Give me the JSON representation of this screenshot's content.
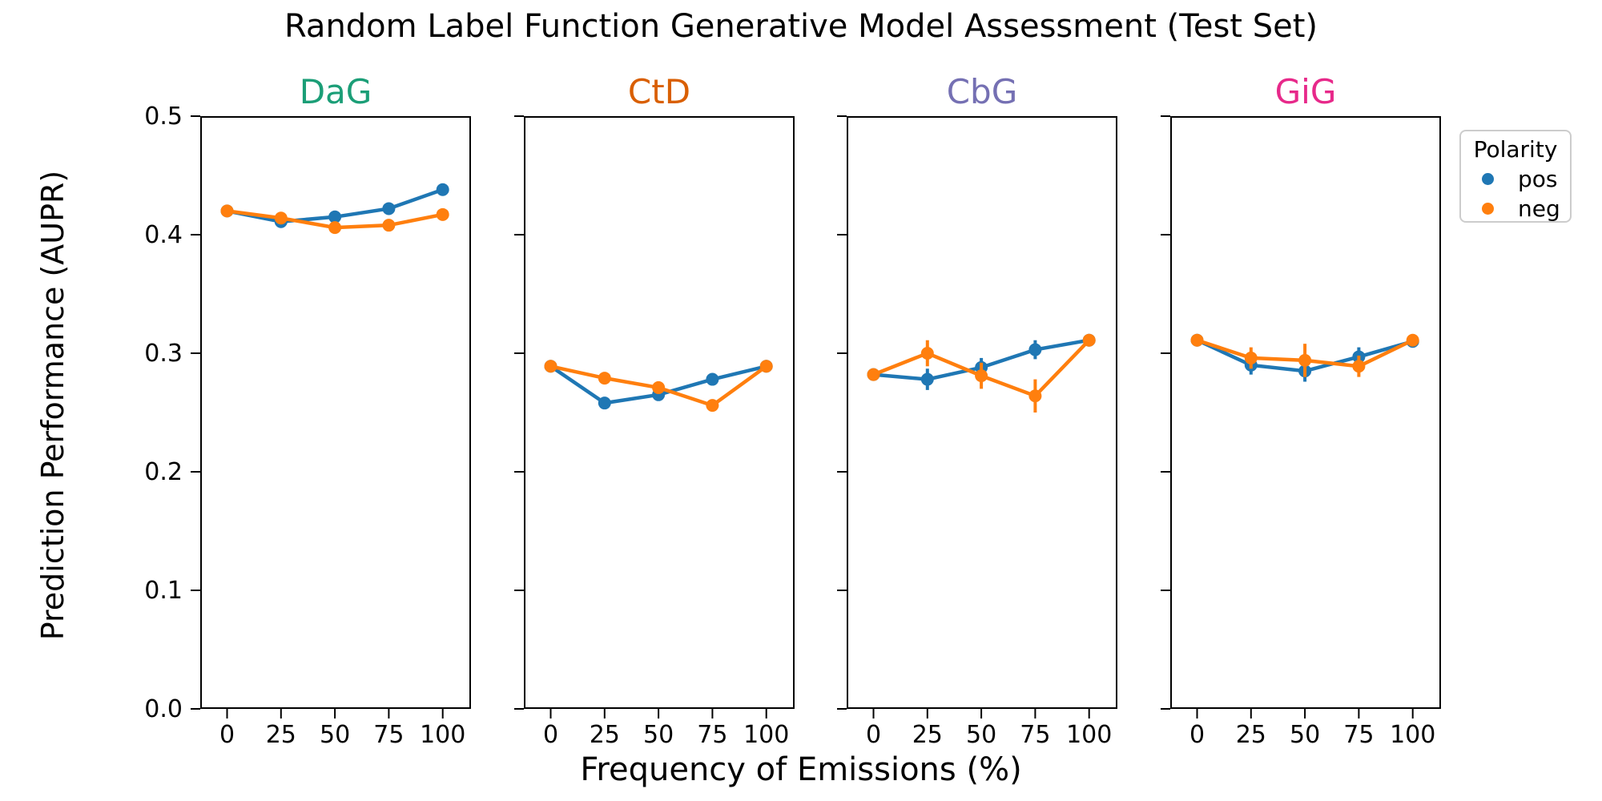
{
  "chart_data": {
    "type": "line",
    "title": "Random Label Function Generative Model Assessment (Test Set)",
    "xlabel": "Frequency of Emissions (%)",
    "ylabel": "Prediction Performance (AUPR)",
    "x": [
      0,
      25,
      50,
      75,
      100
    ],
    "xticklabels": [
      "0",
      "25",
      "50",
      "75",
      "100"
    ],
    "ylim": [
      0.0,
      0.5
    ],
    "yticks": [
      0.5,
      0.4,
      0.3,
      0.2,
      0.1,
      0.0
    ],
    "yticklabels": [
      "0.5",
      "0.4",
      "0.3",
      "0.2",
      "0.1",
      "0.0"
    ],
    "grid": false,
    "legend": {
      "title": "Polarity",
      "position": "outside-upper-right",
      "entries": [
        {
          "label": "pos",
          "color": "#1f77b4"
        },
        {
          "label": "neg",
          "color": "#ff7f0e"
        }
      ]
    },
    "panels": [
      {
        "title": "DaG",
        "title_color": "#1b9e77",
        "series": [
          {
            "name": "pos",
            "color": "#1f77b4",
            "values": [
              0.42,
              0.411,
              0.415,
              0.422,
              0.438
            ],
            "err": [
              0,
              0,
              0,
              0,
              0
            ]
          },
          {
            "name": "neg",
            "color": "#ff7f0e",
            "values": [
              0.42,
              0.414,
              0.406,
              0.408,
              0.417
            ],
            "err": [
              0,
              0,
              0,
              0,
              0
            ]
          }
        ]
      },
      {
        "title": "CtD",
        "title_color": "#d95f02",
        "series": [
          {
            "name": "pos",
            "color": "#1f77b4",
            "values": [
              0.289,
              0.258,
              0.265,
              0.278,
              0.289
            ],
            "err": [
              0,
              0,
              0,
              0,
              0
            ]
          },
          {
            "name": "neg",
            "color": "#ff7f0e",
            "values": [
              0.289,
              0.279,
              0.271,
              0.256,
              0.289
            ],
            "err": [
              0,
              0,
              0,
              0,
              0
            ]
          }
        ]
      },
      {
        "title": "CbG",
        "title_color": "#7570b3",
        "series": [
          {
            "name": "pos",
            "color": "#1f77b4",
            "values": [
              0.282,
              0.278,
              0.288,
              0.303,
              0.311
            ],
            "err": [
              0.004,
              0.009,
              0.008,
              0.008,
              0.004
            ]
          },
          {
            "name": "neg",
            "color": "#ff7f0e",
            "values": [
              0.282,
              0.3,
              0.281,
              0.264,
              0.311
            ],
            "err": [
              0.004,
              0.011,
              0.011,
              0.014,
              0.004
            ]
          }
        ]
      },
      {
        "title": "GiG",
        "title_color": "#e7298a",
        "series": [
          {
            "name": "pos",
            "color": "#1f77b4",
            "values": [
              0.311,
              0.29,
              0.285,
              0.297,
              0.31
            ],
            "err": [
              0.003,
              0.008,
              0.009,
              0.008,
              0.003
            ]
          },
          {
            "name": "neg",
            "color": "#ff7f0e",
            "values": [
              0.311,
              0.296,
              0.294,
              0.289,
              0.311
            ],
            "err": [
              0.003,
              0.009,
              0.014,
              0.009,
              0.003
            ]
          }
        ]
      }
    ]
  }
}
